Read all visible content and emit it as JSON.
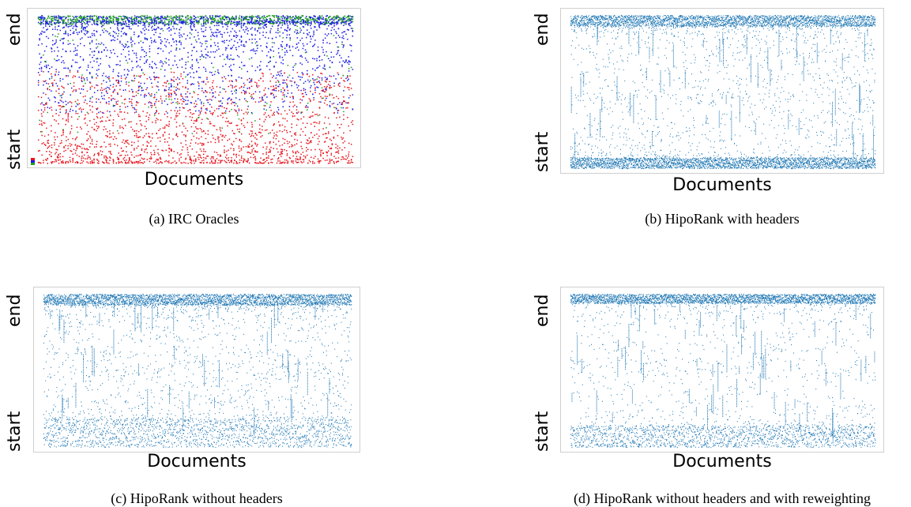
{
  "chart_data": [
    {
      "type": "scatter",
      "caption": "(a) IRC Oracles",
      "xlabel": "Documents",
      "ylabel_top": "end",
      "ylabel_bottom": "start",
      "grid": false,
      "legend": "bottom-left",
      "density_profile": {
        "top_band": 0.06,
        "bottom_band": 0.0,
        "body_density": "high"
      },
      "series": [
        {
          "name": "",
          "color": "#e8141c",
          "region": "lower"
        },
        {
          "name": "",
          "color": "#1a1ae6",
          "region": "upper"
        },
        {
          "name": "",
          "color": "#1f9e1f",
          "region": "top"
        }
      ]
    },
    {
      "type": "scatter",
      "caption": "(b) HipoRank with headers",
      "xlabel": "Documents",
      "ylabel_top": "end",
      "ylabel_bottom": "start",
      "grid": false,
      "density_profile": {
        "top_band": 0.07,
        "bottom_band": 0.07,
        "body_density": "medium"
      },
      "series": [
        {
          "name": "",
          "color": "#1f77b4"
        }
      ]
    },
    {
      "type": "scatter",
      "caption": "(c) HipoRank without headers",
      "xlabel": "Documents",
      "ylabel_top": "end",
      "ylabel_bottom": "start",
      "grid": false,
      "density_profile": {
        "top_band": 0.07,
        "bottom_band": 0.18,
        "body_density": "medium"
      },
      "series": [
        {
          "name": "",
          "color": "#1f77b4"
        }
      ]
    },
    {
      "type": "scatter",
      "caption": "(d) HipoRank without headers and with reweighting",
      "xlabel": "Documents",
      "ylabel_top": "end",
      "ylabel_bottom": "start",
      "grid": false,
      "density_profile": {
        "top_band": 0.06,
        "bottom_band": 0.14,
        "body_density": "low"
      },
      "series": [
        {
          "name": "",
          "color": "#1f77b4"
        }
      ]
    }
  ]
}
